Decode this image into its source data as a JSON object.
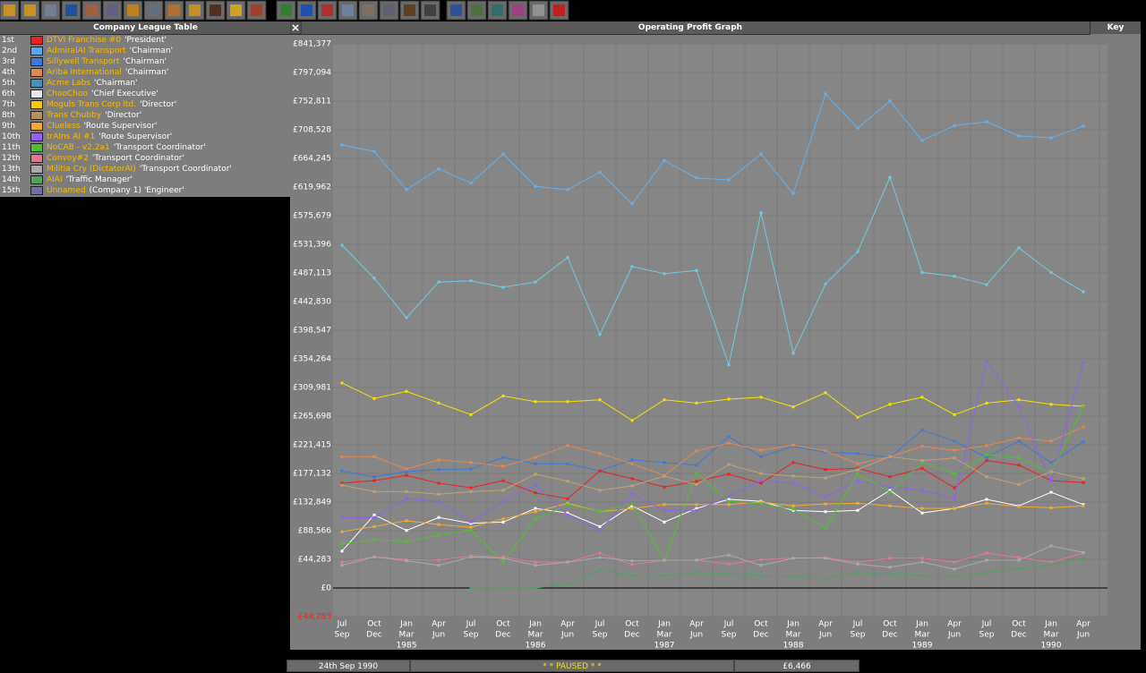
{
  "league_table": {
    "title": "Company League Table",
    "rows": [
      {
        "rank": "1st",
        "name": "DTVI Franchise #0",
        "title": "'President'",
        "color": "#e82020"
      },
      {
        "rank": "2nd",
        "name": "AdmiralAI Transport",
        "title": "'Chairman'",
        "color": "#58a8f0"
      },
      {
        "rank": "3rd",
        "name": "Sillywell Transport",
        "title": "'Chairman'",
        "color": "#3c78d8"
      },
      {
        "rank": "4th",
        "name": "Ariba International",
        "title": "'Chairman'",
        "color": "#e08850"
      },
      {
        "rank": "5th",
        "name": "Acme Labs",
        "title": "'Chairman'",
        "color": "#4890b8"
      },
      {
        "rank": "6th",
        "name": "ChooChoo",
        "title": "'Chief Executive'",
        "color": "#e8e8e8"
      },
      {
        "rank": "7th",
        "name": "Moguls Trans Corp ltd.",
        "title": "'Director'",
        "color": "#f8c800"
      },
      {
        "rank": "8th",
        "name": "Trans Chubby",
        "title": "'Director'",
        "color": "#b89060"
      },
      {
        "rank": "9th",
        "name": "Clueless",
        "title": "'Route Supervisor'",
        "color": "#f4a830"
      },
      {
        "rank": "10th",
        "name": "trAIns AI #1",
        "title": "'Route Supervisor'",
        "color": "#9060f0"
      },
      {
        "rank": "11th",
        "name": "NoCAB - v2.2a1",
        "title": "'Transport Coordinator'",
        "color": "#50c030"
      },
      {
        "rank": "12th",
        "name": "Convoy#2",
        "title": "'Transport Coordinator'",
        "color": "#e07890"
      },
      {
        "rank": "13th",
        "name": "Militia Cry (DictatorAI)",
        "title": "'Transport Coordinator'",
        "color": "#a8a8a8"
      },
      {
        "rank": "14th",
        "name": "AIAI",
        "title": "'Traffic Manager'",
        "color": "#50a060"
      },
      {
        "rank": "15th",
        "name": "Unnamed",
        "title": "(Company 1) 'Engineer'",
        "color": "#7070a8"
      }
    ]
  },
  "graph_window": {
    "key_button": "Key"
  },
  "chart_data": {
    "type": "line",
    "title": "Operating Profit Graph",
    "categories": [
      [
        "Jul",
        "Sep"
      ],
      [
        "Oct",
        "Dec"
      ],
      [
        "Jan",
        "Mar",
        "1985"
      ],
      [
        "Apr",
        "Jun"
      ],
      [
        "Jul",
        "Sep"
      ],
      [
        "Oct",
        "Dec"
      ],
      [
        "Jan",
        "Mar",
        "1986"
      ],
      [
        "Apr",
        "Jun"
      ],
      [
        "Jul",
        "Sep"
      ],
      [
        "Oct",
        "Dec"
      ],
      [
        "Jan",
        "Mar",
        "1987"
      ],
      [
        "Apr",
        "Jun"
      ],
      [
        "Jul",
        "Sep"
      ],
      [
        "Oct",
        "Dec"
      ],
      [
        "Jan",
        "Mar",
        "1988"
      ],
      [
        "Apr",
        "Jun"
      ],
      [
        "Jul",
        "Sep"
      ],
      [
        "Oct",
        "Dec"
      ],
      [
        "Jan",
        "Mar",
        "1989"
      ],
      [
        "Apr",
        "Jun"
      ],
      [
        "Jul",
        "Sep"
      ],
      [
        "Oct",
        "Dec"
      ],
      [
        "Jan",
        "Mar",
        "1990"
      ],
      [
        "Apr",
        "Jun"
      ]
    ],
    "ylim": [
      -44283,
      841377
    ],
    "yticks": [
      {
        "value": -44283,
        "label": "-£44,283"
      },
      {
        "value": 0,
        "label": "£0"
      },
      {
        "value": 44283,
        "label": "£44,283"
      },
      {
        "value": 88566,
        "label": "£88,566"
      },
      {
        "value": 132849,
        "label": "£132,849"
      },
      {
        "value": 177132,
        "label": "£177,132"
      },
      {
        "value": 221415,
        "label": "£221,415"
      },
      {
        "value": 265698,
        "label": "£265,698"
      },
      {
        "value": 309981,
        "label": "£309,981"
      },
      {
        "value": 354264,
        "label": "£354,264"
      },
      {
        "value": 398547,
        "label": "£398,547"
      },
      {
        "value": 442830,
        "label": "£442,830"
      },
      {
        "value": 487113,
        "label": "£487,113"
      },
      {
        "value": 531396,
        "label": "£531,396"
      },
      {
        "value": 575679,
        "label": "£575,679"
      },
      {
        "value": 619962,
        "label": "£619,962"
      },
      {
        "value": 664245,
        "label": "£664,245"
      },
      {
        "value": 708528,
        "label": "£708,528"
      },
      {
        "value": 752811,
        "label": "£752,811"
      },
      {
        "value": 797094,
        "label": "£797,094"
      },
      {
        "value": 841377,
        "label": "£841,377"
      }
    ],
    "grid": true,
    "series": [
      {
        "color": "#60b0f0",
        "values": [
          685000,
          675000,
          616000,
          648000,
          626000,
          671000,
          621000,
          616000,
          643000,
          594000,
          661000,
          634000,
          631000,
          671000,
          610000,
          764000,
          711000,
          753000,
          692000,
          715000,
          721000,
          699000,
          696000,
          714000
        ]
      },
      {
        "color": "#70c8e0",
        "values": [
          530000,
          479000,
          418000,
          473000,
          475000,
          465000,
          473000,
          511000,
          392000,
          497000,
          486000,
          491000,
          345000,
          580000,
          363000,
          470000,
          520000,
          635000,
          488000,
          482000,
          469000,
          526000,
          488000,
          458000
        ]
      },
      {
        "color": "#f8e000",
        "values": [
          317000,
          293000,
          304000,
          286000,
          268000,
          297000,
          288000,
          288000,
          291000,
          259000,
          291000,
          286000,
          292000,
          295000,
          280000,
          302000,
          264000,
          284000,
          295000,
          268000,
          286000,
          291000,
          284000,
          281000
        ]
      },
      {
        "color": "#3c78d8",
        "values": [
          181000,
          172000,
          180000,
          183000,
          184000,
          202000,
          192000,
          192000,
          181000,
          198000,
          194000,
          190000,
          234000,
          203000,
          219000,
          210000,
          208000,
          202000,
          244000,
          227000,
          202000,
          227000,
          194000,
          226000
        ]
      },
      {
        "color": "#f02020",
        "values": [
          162000,
          166000,
          174000,
          162000,
          155000,
          166000,
          147000,
          138000,
          181000,
          169000,
          156000,
          165000,
          176000,
          162000,
          194000,
          183000,
          185000,
          172000,
          185000,
          155000,
          197000,
          190000,
          166000,
          163000
        ]
      },
      {
        "color": "#e08850",
        "values": [
          203000,
          203000,
          184000,
          198000,
          194000,
          188000,
          202000,
          220000,
          208000,
          192000,
          174000,
          212000,
          224000,
          213000,
          221000,
          212000,
          192000,
          203000,
          219000,
          213000,
          220000,
          232000,
          227000,
          249000
        ]
      },
      {
        "color": "#ffffff",
        "values": [
          57000,
          113000,
          89000,
          109000,
          100000,
          102000,
          123000,
          116000,
          95000,
          127000,
          102000,
          123000,
          137000,
          134000,
          120000,
          118000,
          120000,
          151000,
          116000,
          123000,
          137000,
          127000,
          148000,
          129000
        ]
      },
      {
        "color": "#f4a830",
        "values": [
          87000,
          95000,
          104000,
          98000,
          94000,
          107000,
          118000,
          131000,
          118000,
          123000,
          129000,
          129000,
          129000,
          133000,
          127000,
          130000,
          131000,
          127000,
          123000,
          123000,
          131000,
          126000,
          124000,
          127000
        ]
      },
      {
        "color": "#9060f0",
        "values": [
          109000,
          109000,
          138000,
          134000,
          102000,
          134000,
          159000,
          113000,
          89000,
          145000,
          120000,
          120000,
          141000,
          166000,
          162000,
          141000,
          165000,
          156000,
          151000,
          138000,
          350000,
          280000,
          165000,
          349000
        ]
      },
      {
        "color": "#50c030",
        "values": [
          68000,
          75000,
          72000,
          82000,
          90000,
          40000,
          107000,
          129000,
          118000,
          130000,
          42000,
          178000,
          134000,
          130000,
          122000,
          93000,
          176000,
          148000,
          194000,
          176000,
          206000,
          201000,
          178000,
          280000
        ]
      },
      {
        "color": "#e07890",
        "values": [
          40000,
          48000,
          44000,
          43000,
          50000,
          48000,
          40000,
          40000,
          54000,
          36000,
          43000,
          43000,
          37000,
          44000,
          46000,
          47000,
          40000,
          46000,
          46000,
          40000,
          54000,
          47000,
          40000,
          54000
        ]
      },
      {
        "color": "#a8a8a8",
        "values": [
          35000,
          48000,
          42000,
          35000,
          48000,
          46000,
          35000,
          40000,
          47000,
          42000,
          43000,
          43000,
          51000,
          35000,
          46000,
          46000,
          37000,
          32000,
          40000,
          29000,
          43000,
          43000,
          65000,
          55000
        ]
      },
      {
        "color": "#50a060",
        "values": [
          null,
          null,
          null,
          null,
          0,
          0,
          0,
          5000,
          28000,
          19000,
          19000,
          24000,
          22000,
          19000,
          18000,
          15000,
          24000,
          21000,
          19000,
          18000,
          24000,
          30000,
          36000,
          46000
        ]
      },
      {
        "color": "#c0a070",
        "values": [
          159000,
          149000,
          149000,
          145000,
          149000,
          151000,
          176000,
          165000,
          151000,
          158000,
          173000,
          160000,
          191000,
          177000,
          173000,
          170000,
          183000,
          203000,
          197000,
          201000,
          172000,
          160000,
          180000,
          169000
        ]
      }
    ]
  },
  "status_bar": {
    "date": "24th Sep 1990",
    "status": "* * PAUSED * *",
    "money": "£6,466"
  }
}
